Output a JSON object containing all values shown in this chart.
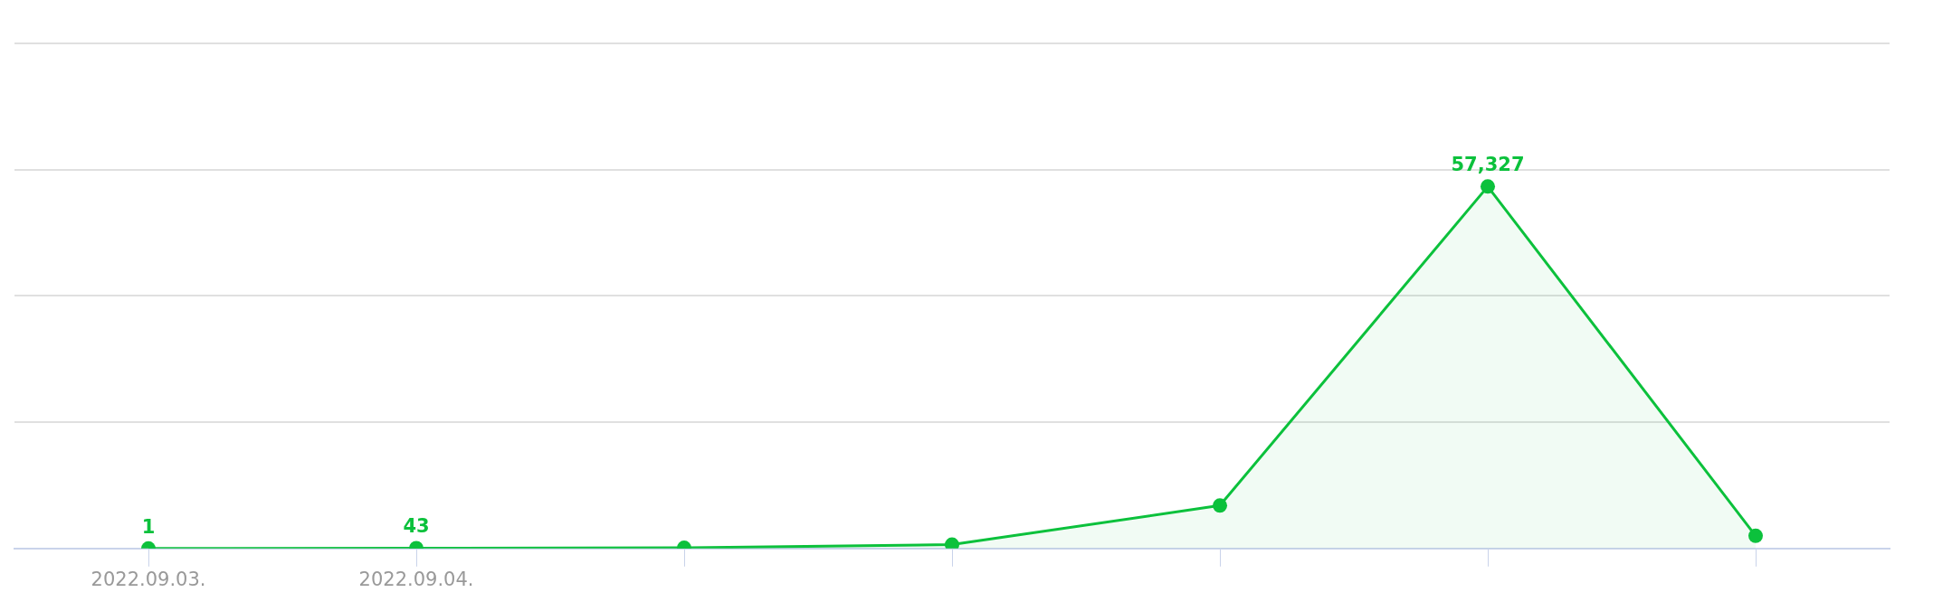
{
  "chart_data": {
    "type": "area",
    "categories": [
      "2022.09.03.",
      "2022.09.04.",
      null,
      null,
      null,
      null,
      null
    ],
    "series": [
      {
        "color": "#0cc13c",
        "values": [
          1,
          43,
          100,
          600,
          6800,
          57327,
          2000
        ],
        "value_labels": [
          "1",
          "43",
          null,
          null,
          null,
          "57,327",
          null
        ]
      }
    ],
    "ylim": [
      0,
      80000
    ],
    "yticks": [
      {
        "value": 0,
        "label": null
      },
      {
        "value": 20000,
        "label": null
      },
      {
        "value": 40000,
        "label": null
      },
      {
        "value": 60000,
        "label": null
      },
      {
        "value": 80000,
        "label": null
      }
    ],
    "grid": "y",
    "tick_labels": "x",
    "marker": "circle",
    "legend": false
  }
}
